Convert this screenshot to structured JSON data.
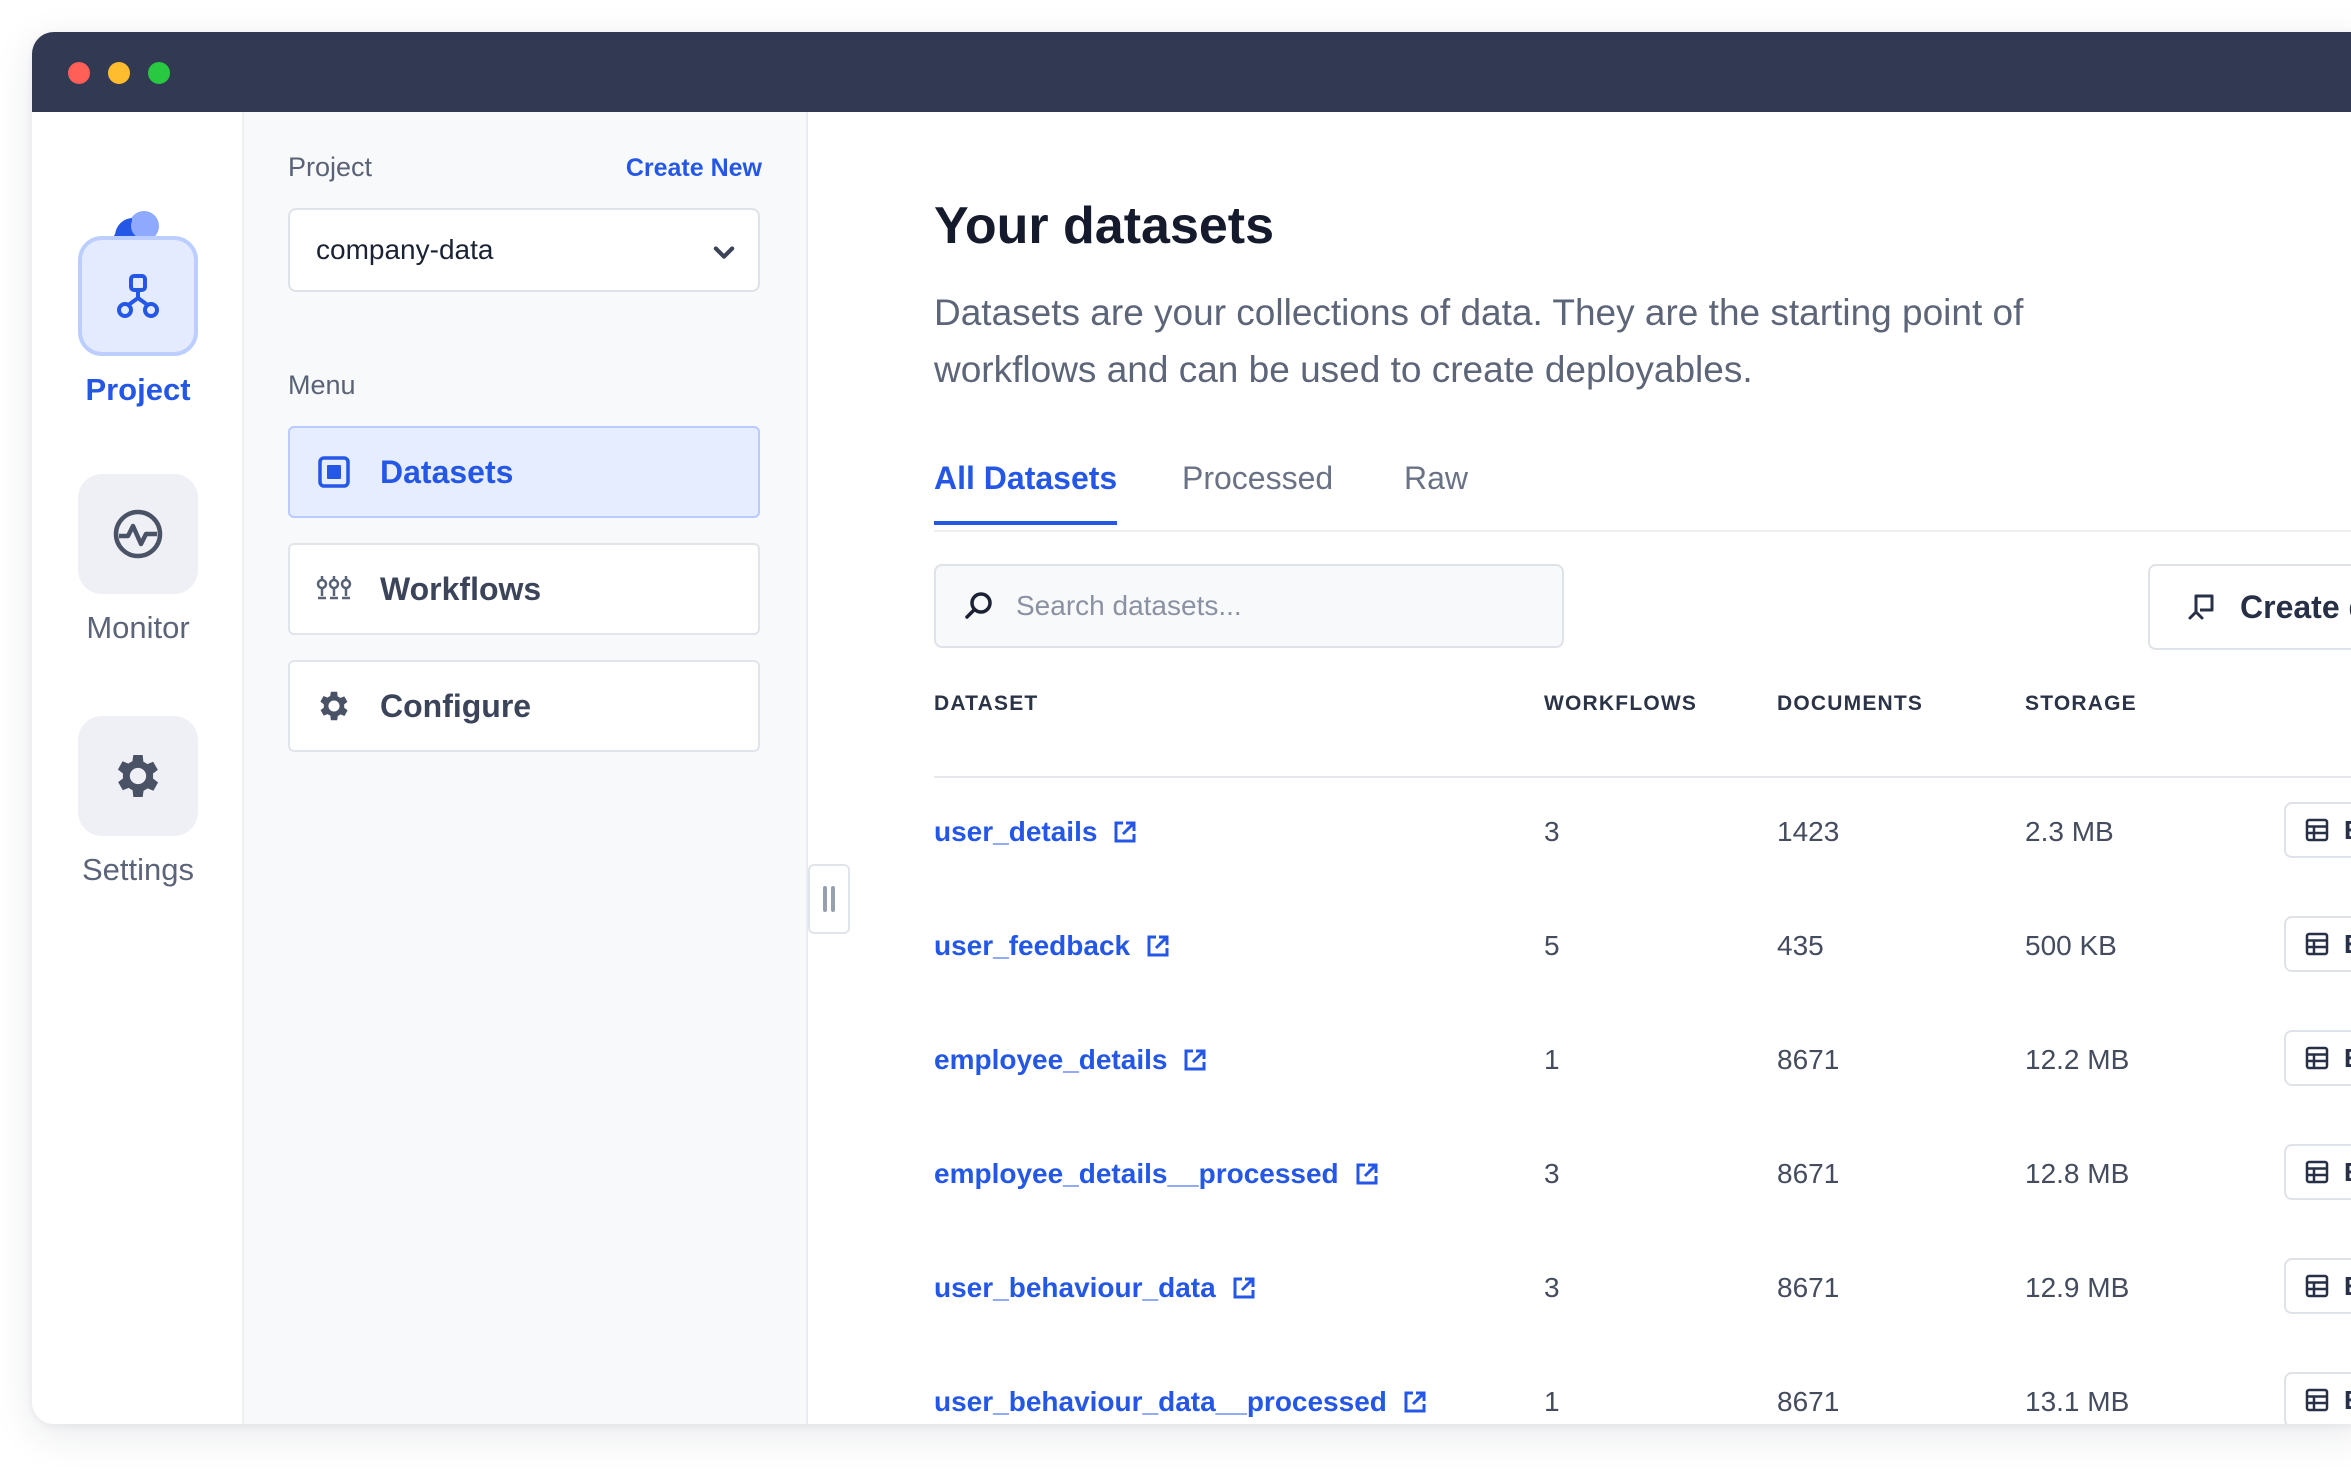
{
  "window": {
    "controls": [
      "close",
      "minimize",
      "maximize"
    ]
  },
  "rail": {
    "items": [
      {
        "label": "Project",
        "icon": "project-graph-icon",
        "active": true
      },
      {
        "label": "Monitor",
        "icon": "monitor-pulse-icon",
        "active": false
      },
      {
        "label": "Settings",
        "icon": "gear-icon",
        "active": false
      }
    ]
  },
  "menu_panel": {
    "project_label": "Project",
    "create_new": "Create New",
    "project_value": "company-data",
    "menu_label": "Menu",
    "items": [
      {
        "label": "Datasets",
        "icon": "dataset-square-icon",
        "active": true
      },
      {
        "label": "Workflows",
        "icon": "workflow-nodes-icon",
        "active": false
      },
      {
        "label": "Configure",
        "icon": "gear-icon",
        "active": false
      }
    ]
  },
  "main": {
    "title": "Your datasets",
    "description": "Datasets are your collections of data. They are the starting point of workflows and can be used to create deployables.",
    "tabs": [
      {
        "label": "All Datasets",
        "active": true
      },
      {
        "label": "Processed",
        "active": false
      },
      {
        "label": "Raw",
        "active": false
      }
    ],
    "search": {
      "placeholder": "Search datasets...",
      "value": ""
    },
    "create_button": "Create dat",
    "table": {
      "headers": [
        "DATASET",
        "WORKFLOWS",
        "DOCUMENTS",
        "STORAGE"
      ],
      "rows": [
        {
          "name": "user_details",
          "workflows": "3",
          "documents": "1423",
          "storage": "2.3 MB",
          "action": "Exp"
        },
        {
          "name": "user_feedback",
          "workflows": "5",
          "documents": "435",
          "storage": "500 KB",
          "action": "Exp"
        },
        {
          "name": "employee_details",
          "workflows": "1",
          "documents": "8671",
          "storage": "12.2 MB",
          "action": "Exp"
        },
        {
          "name": "employee_details__processed",
          "workflows": "3",
          "documents": "8671",
          "storage": "12.8 MB",
          "action": "Exp"
        },
        {
          "name": "user_behaviour_data",
          "workflows": "3",
          "documents": "8671",
          "storage": "12.9 MB",
          "action": "Exp"
        },
        {
          "name": "user_behaviour_data__processed",
          "workflows": "1",
          "documents": "8671",
          "storage": "13.1 MB",
          "action": "Exp"
        }
      ]
    }
  },
  "colors": {
    "accent": "#2457e6",
    "titlebar": "#313a52",
    "sidebar_bg": "#f8f9fb"
  }
}
